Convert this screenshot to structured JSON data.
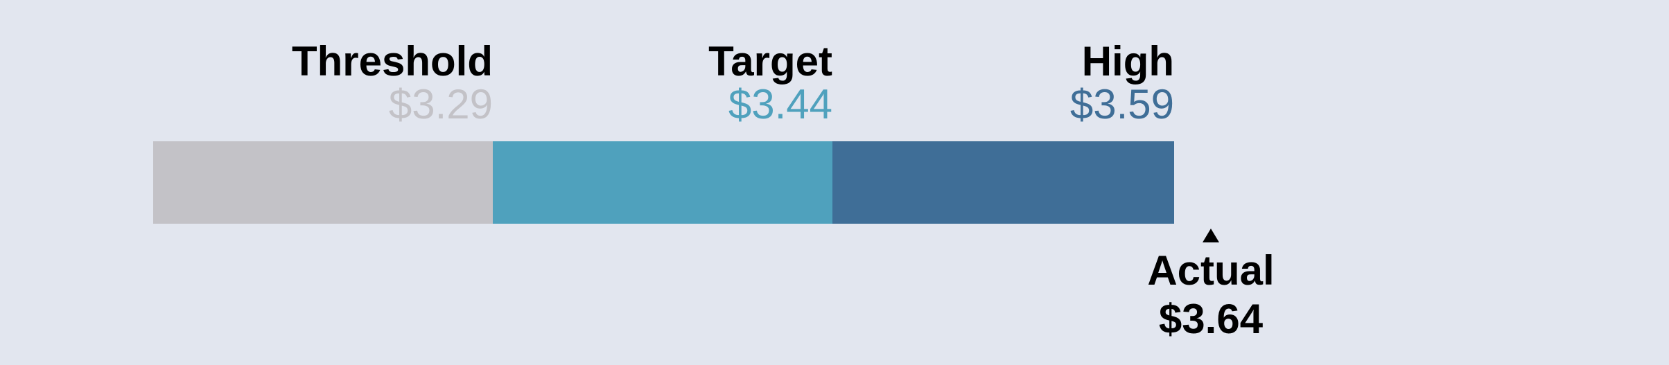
{
  "chart_data": {
    "type": "bar",
    "subtype": "bullet",
    "segments": [
      {
        "name": "Threshold",
        "value": 3.29,
        "value_label": "$3.29",
        "color": "#c3c2c7"
      },
      {
        "name": "Target",
        "value": 3.44,
        "value_label": "$3.44",
        "color": "#4fa1bd"
      },
      {
        "name": "High",
        "value": 3.59,
        "value_label": "$3.59",
        "color": "#3f6e97"
      }
    ],
    "actual": {
      "name": "Actual",
      "value": 3.64,
      "value_label": "$3.64",
      "color": "#000000"
    },
    "background": "#e2e6ef"
  }
}
